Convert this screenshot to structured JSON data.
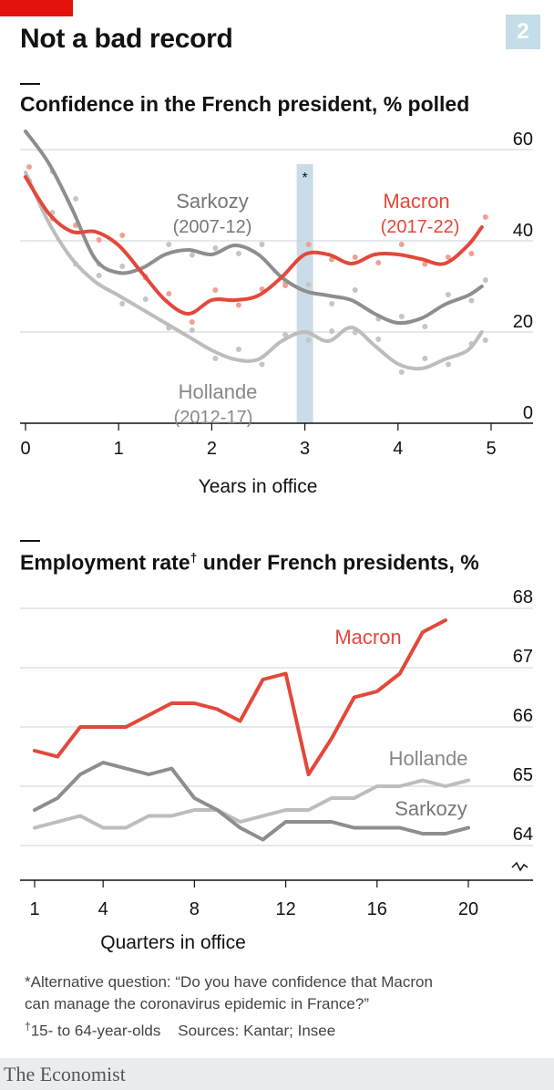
{
  "header": {
    "title": "Not a bad record",
    "badge": "2"
  },
  "charts": {
    "confidence": {
      "subtitle": "Confidence in the French president, % polled"
    },
    "employment": {
      "subtitle_main": "Employment rate",
      "subtitle_mark": "†",
      "subtitle_rest": " under French presidents, %"
    }
  },
  "notes": {
    "line1": "*Alternative question: “Do you have confidence that Macron",
    "line2": "can manage the coronavirus epidemic in France?”",
    "line3_mark": "†",
    "line3": "15- to 64-year-olds    Sources: Kantar; Insee"
  },
  "brand": "The Economist",
  "colors": {
    "macron": "#e3483a",
    "sarkozy": "#8e8e8e",
    "hollande": "#bdbdbd",
    "band": "#c9dce8",
    "dots_macron": "#f0a095",
    "dots_grey": "#c5c5c5"
  },
  "chart_data": [
    {
      "type": "line",
      "title": "Confidence in the French president, % polled",
      "xlabel": "Years in office",
      "ylabel": "",
      "xlim": [
        0,
        5
      ],
      "ylim": [
        0,
        60
      ],
      "x_ticks": [
        0,
        1,
        2,
        3,
        4,
        5
      ],
      "y_ticks": [
        0,
        20,
        40,
        60
      ],
      "grid": true,
      "annotation": {
        "x": 3,
        "label": "*"
      },
      "series": [
        {
          "name": "Sarkozy",
          "label_sub": "(2007-12)",
          "color": "#8e8e8e",
          "x": [
            0,
            0.25,
            0.5,
            0.75,
            1,
            1.25,
            1.5,
            1.75,
            2,
            2.25,
            2.5,
            2.75,
            3,
            3.25,
            3.5,
            3.75,
            4,
            4.25,
            4.5,
            4.75,
            4.9
          ],
          "values": [
            64,
            57,
            47,
            36,
            33,
            34,
            37,
            38,
            37,
            39,
            37,
            32,
            29,
            28,
            27,
            24,
            22,
            23,
            26,
            28,
            30
          ]
        },
        {
          "name": "Hollande",
          "label_sub": "(2012-17)",
          "color": "#bdbdbd",
          "x": [
            0,
            0.25,
            0.5,
            0.75,
            1,
            1.25,
            1.5,
            1.75,
            2,
            2.25,
            2.5,
            2.75,
            3,
            3.25,
            3.5,
            3.75,
            4,
            4.25,
            4.5,
            4.75,
            4.9
          ],
          "values": [
            55,
            44,
            36,
            31,
            28,
            25,
            22,
            19,
            16,
            14,
            14,
            18,
            20,
            18,
            21,
            17,
            13,
            12,
            14,
            16,
            20
          ]
        },
        {
          "name": "Macron",
          "label_sub": "(2017-22)",
          "color": "#e3483a",
          "x": [
            0,
            0.25,
            0.5,
            0.75,
            1,
            1.25,
            1.5,
            1.75,
            2,
            2.25,
            2.5,
            2.75,
            3,
            3.25,
            3.5,
            3.75,
            4,
            4.25,
            4.5,
            4.75,
            4.9
          ],
          "values": [
            54,
            46,
            42,
            42,
            39,
            33,
            27,
            24,
            27,
            27,
            28,
            32,
            37,
            37,
            35,
            37,
            37,
            36,
            35,
            39,
            43
          ]
        }
      ]
    },
    {
      "type": "line",
      "title": "Employment rate† under French presidents, %",
      "xlabel": "Quarters in office",
      "ylabel": "",
      "xlim": [
        1,
        20
      ],
      "ylim": [
        64,
        68
      ],
      "x_ticks": [
        1,
        4,
        8,
        12,
        16,
        20
      ],
      "y_ticks": [
        64,
        65,
        66,
        67,
        68
      ],
      "grid": true,
      "series": [
        {
          "name": "Macron",
          "color": "#e3483a",
          "x": [
            1,
            2,
            3,
            4,
            5,
            6,
            7,
            8,
            9,
            10,
            11,
            12,
            13,
            14,
            15,
            16,
            17,
            18,
            19
          ],
          "values": [
            65.6,
            65.5,
            66.0,
            66.0,
            66.0,
            66.2,
            66.4,
            66.4,
            66.3,
            66.1,
            66.8,
            66.9,
            65.2,
            65.8,
            66.5,
            66.6,
            66.9,
            67.6,
            67.8
          ]
        },
        {
          "name": "Hollande",
          "color": "#bdbdbd",
          "x": [
            1,
            2,
            3,
            4,
            5,
            6,
            7,
            8,
            9,
            10,
            11,
            12,
            13,
            14,
            15,
            16,
            17,
            18,
            19,
            20
          ],
          "values": [
            64.3,
            64.4,
            64.5,
            64.3,
            64.3,
            64.5,
            64.5,
            64.6,
            64.6,
            64.4,
            64.5,
            64.6,
            64.6,
            64.8,
            64.8,
            65.0,
            65.0,
            65.1,
            65.0,
            65.1
          ]
        },
        {
          "name": "Sarkozy",
          "color": "#8e8e8e",
          "x": [
            1,
            2,
            3,
            4,
            5,
            6,
            7,
            8,
            9,
            10,
            11,
            12,
            13,
            14,
            15,
            16,
            17,
            18,
            19,
            20
          ],
          "values": [
            64.6,
            64.8,
            65.2,
            65.4,
            65.3,
            65.2,
            65.3,
            64.8,
            64.6,
            64.3,
            64.1,
            64.4,
            64.4,
            64.4,
            64.3,
            64.3,
            64.3,
            64.2,
            64.2,
            64.3
          ]
        }
      ]
    }
  ]
}
